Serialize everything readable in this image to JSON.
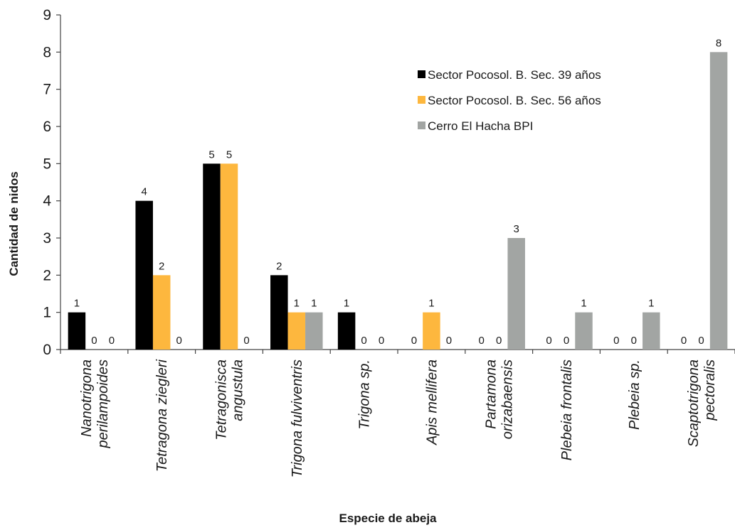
{
  "chart_data": {
    "type": "bar",
    "xlabel": "Especie de abeja",
    "ylabel": "Cantidad de nidos",
    "ylim": [
      0,
      9
    ],
    "yticks": [
      0,
      1,
      2,
      3,
      4,
      5,
      6,
      7,
      8,
      9
    ],
    "legend_position": "top-right",
    "grid": false,
    "categories": [
      [
        "Nanotrigona",
        "perilampoides"
      ],
      [
        "Tetragona ziegleri"
      ],
      [
        "Tetragonisca",
        "angustula"
      ],
      [
        "Trigona fulviventris"
      ],
      [
        "Trigona sp."
      ],
      [
        "Apis mellifera"
      ],
      [
        "Partamona",
        "orizabaensis"
      ],
      [
        "Plebeia frontalis"
      ],
      [
        "Plebeia sp."
      ],
      [
        "Scaptotrigona",
        "pectoralis"
      ]
    ],
    "series": [
      {
        "name": "Sector Pocosol. B. Sec. 39 años",
        "color": "#000000",
        "values": [
          1,
          4,
          5,
          2,
          1,
          0,
          0,
          0,
          0,
          0
        ]
      },
      {
        "name": "Sector Pocosol. B. Sec. 56 años",
        "color": "#FDB73E",
        "values": [
          0,
          2,
          5,
          1,
          0,
          1,
          0,
          0,
          0,
          0
        ]
      },
      {
        "name": "Cerro El Hacha BPI",
        "color": "#A2A5A3",
        "values": [
          0,
          0,
          0,
          1,
          0,
          0,
          3,
          1,
          1,
          8
        ]
      }
    ]
  }
}
